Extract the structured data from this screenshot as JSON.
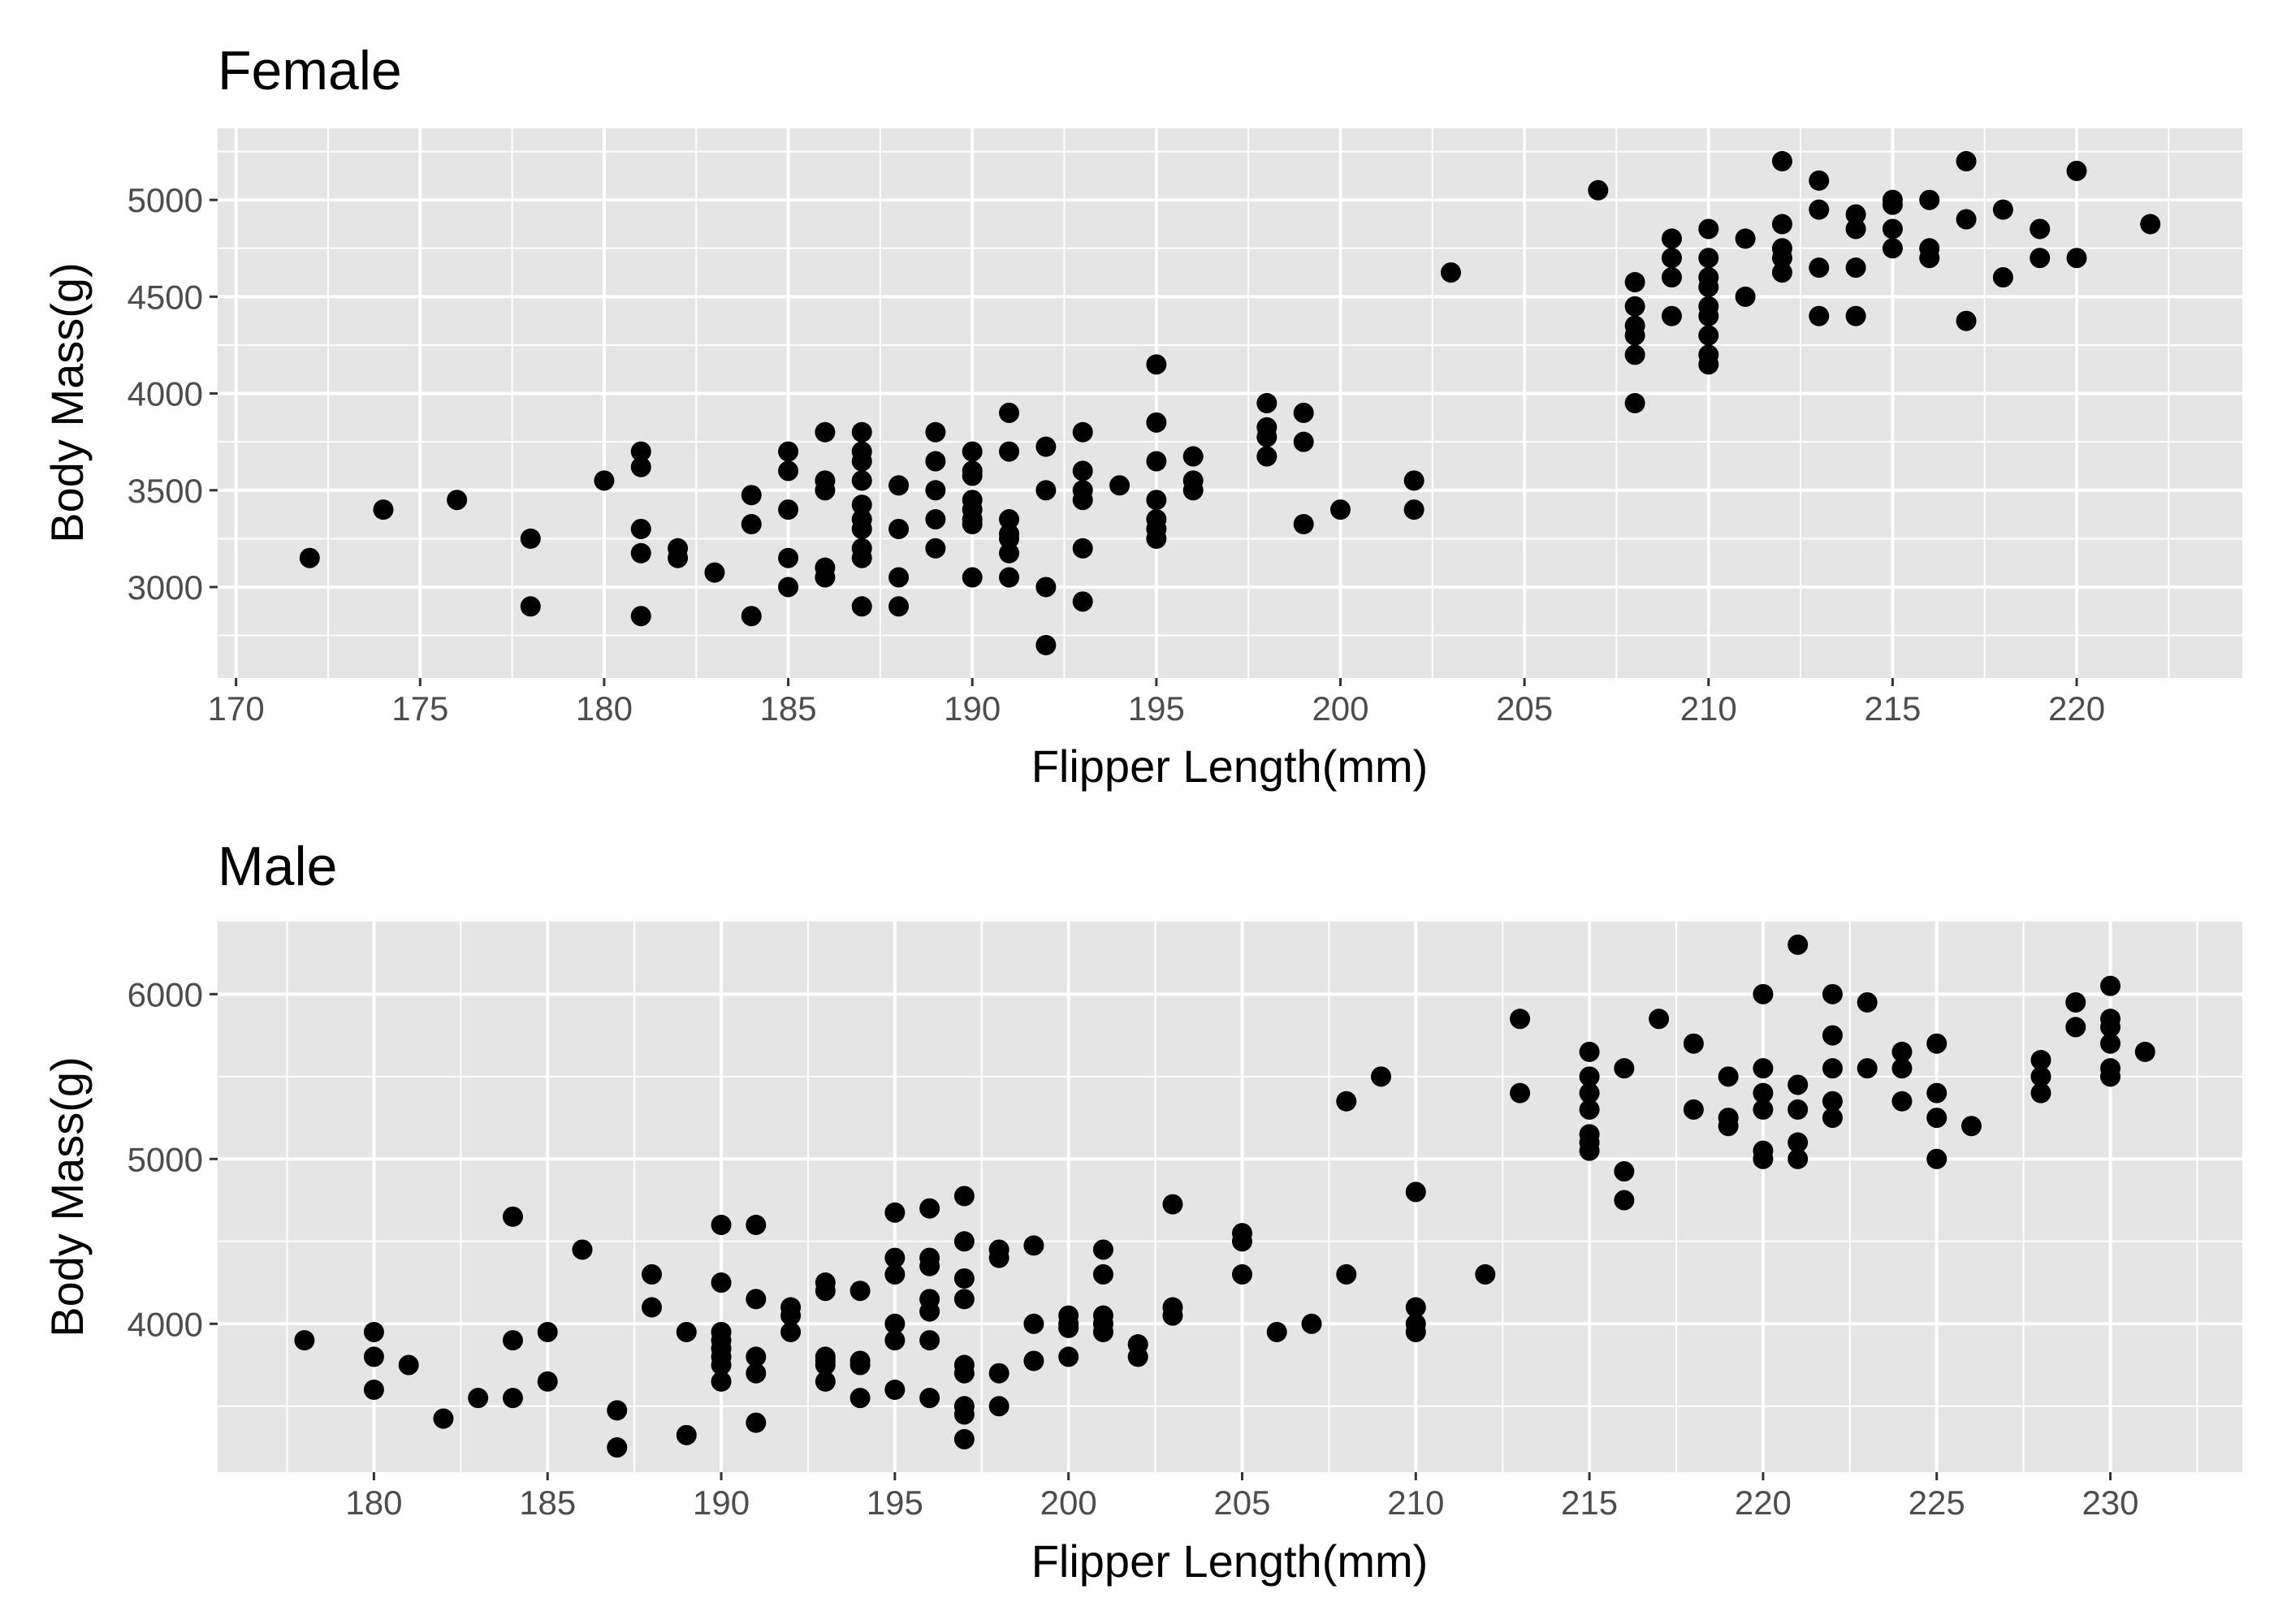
{
  "chart_data": [
    {
      "type": "scatter",
      "title": "Female",
      "xlabel": "Flipper Length(mm)",
      "ylabel": "Body Mass(g)",
      "xlim": [
        169.5,
        224.5
      ],
      "ylim": [
        2530,
        5370
      ],
      "xticks": [
        170,
        175,
        180,
        185,
        190,
        195,
        200,
        205,
        210,
        215,
        220
      ],
      "yticks": [
        3000,
        3500,
        4000,
        4500,
        5000
      ],
      "grid": true,
      "legend": "none",
      "points": [
        [
          172,
          3150
        ],
        [
          174,
          3400
        ],
        [
          176,
          3450
        ],
        [
          178,
          3250
        ],
        [
          178,
          2900
        ],
        [
          180,
          3550
        ],
        [
          181,
          3700
        ],
        [
          181,
          3620
        ],
        [
          181,
          3300
        ],
        [
          181,
          3175
        ],
        [
          181,
          2850
        ],
        [
          182,
          3200
        ],
        [
          182,
          3150
        ],
        [
          183,
          3075
        ],
        [
          184,
          3475
        ],
        [
          184,
          3325
        ],
        [
          184,
          2850
        ],
        [
          185,
          3700
        ],
        [
          185,
          3600
        ],
        [
          185,
          3400
        ],
        [
          185,
          3150
        ],
        [
          185,
          3000
        ],
        [
          186,
          3800
        ],
        [
          186,
          3550
        ],
        [
          186,
          3500
        ],
        [
          186,
          3100
        ],
        [
          186,
          3050
        ],
        [
          187,
          3800
        ],
        [
          187,
          3700
        ],
        [
          187,
          3650
        ],
        [
          187,
          3550
        ],
        [
          187,
          3425
        ],
        [
          187,
          3350
        ],
        [
          187,
          3300
        ],
        [
          187,
          3200
        ],
        [
          187,
          3150
        ],
        [
          187,
          2900
        ],
        [
          188,
          3525
        ],
        [
          188,
          3300
        ],
        [
          188,
          3050
        ],
        [
          188,
          2900
        ],
        [
          189,
          3800
        ],
        [
          189,
          3650
        ],
        [
          189,
          3500
        ],
        [
          189,
          3350
        ],
        [
          189,
          3200
        ],
        [
          190,
          3700
        ],
        [
          190,
          3600
        ],
        [
          190,
          3575
        ],
        [
          190,
          3450
        ],
        [
          190,
          3400
        ],
        [
          190,
          3350
        ],
        [
          190,
          3325
        ],
        [
          190,
          3050
        ],
        [
          191,
          3900
        ],
        [
          191,
          3700
        ],
        [
          191,
          3350
        ],
        [
          191,
          3275
        ],
        [
          191,
          3250
        ],
        [
          191,
          3175
        ],
        [
          191,
          3050
        ],
        [
          192,
          3725
        ],
        [
          192,
          3500
        ],
        [
          192,
          3000
        ],
        [
          192,
          2700
        ],
        [
          193,
          3800
        ],
        [
          193,
          3600
        ],
        [
          193,
          3500
        ],
        [
          193,
          3450
        ],
        [
          193,
          3200
        ],
        [
          193,
          2925
        ],
        [
          194,
          3525
        ],
        [
          195,
          4150
        ],
        [
          195,
          3850
        ],
        [
          195,
          3650
        ],
        [
          195,
          3450
        ],
        [
          195,
          3350
        ],
        [
          195,
          3300
        ],
        [
          195,
          3250
        ],
        [
          196,
          3675
        ],
        [
          196,
          3550
        ],
        [
          196,
          3500
        ],
        [
          198,
          3950
        ],
        [
          198,
          3825
        ],
        [
          198,
          3775
        ],
        [
          198,
          3675
        ],
        [
          199,
          3900
        ],
        [
          199,
          3750
        ],
        [
          199,
          3325
        ],
        [
          200,
          3400
        ],
        [
          202,
          3550
        ],
        [
          202,
          3400
        ],
        [
          203,
          4625
        ],
        [
          207,
          5050
        ],
        [
          208,
          4575
        ],
        [
          208,
          4450
        ],
        [
          208,
          4350
        ],
        [
          208,
          4300
        ],
        [
          208,
          4200
        ],
        [
          208,
          3950
        ],
        [
          209,
          4800
        ],
        [
          209,
          4700
        ],
        [
          209,
          4600
        ],
        [
          209,
          4400
        ],
        [
          210,
          4850
        ],
        [
          210,
          4700
        ],
        [
          210,
          4600
        ],
        [
          210,
          4550
        ],
        [
          210,
          4450
        ],
        [
          210,
          4400
        ],
        [
          210,
          4300
        ],
        [
          210,
          4200
        ],
        [
          210,
          4150
        ],
        [
          211,
          4800
        ],
        [
          211,
          4500
        ],
        [
          212,
          5200
        ],
        [
          212,
          4875
        ],
        [
          212,
          4750
        ],
        [
          212,
          4700
        ],
        [
          212,
          4625
        ],
        [
          213,
          5100
        ],
        [
          213,
          4950
        ],
        [
          213,
          4650
        ],
        [
          213,
          4400
        ],
        [
          214,
          4925
        ],
        [
          214,
          4850
        ],
        [
          214,
          4650
        ],
        [
          214,
          4400
        ],
        [
          215,
          5000
        ],
        [
          215,
          4975
        ],
        [
          215,
          4850
        ],
        [
          215,
          4750
        ],
        [
          216,
          5000
        ],
        [
          216,
          4750
        ],
        [
          216,
          4700
        ],
        [
          217,
          5200
        ],
        [
          217,
          4900
        ],
        [
          217,
          4375
        ],
        [
          218,
          4950
        ],
        [
          218,
          4600
        ],
        [
          219,
          4850
        ],
        [
          219,
          4700
        ],
        [
          220,
          5150
        ],
        [
          220,
          4700
        ],
        [
          222,
          4875
        ]
      ]
    },
    {
      "type": "scatter",
      "title": "Male",
      "xlabel": "Flipper Length(mm)",
      "ylabel": "Body Mass(g)",
      "xlim": [
        175.5,
        233.8
      ],
      "ylim": [
        3100,
        6440
      ],
      "xticks": [
        180,
        185,
        190,
        195,
        200,
        205,
        210,
        215,
        220,
        225,
        230
      ],
      "yticks": [
        4000,
        5000,
        6000
      ],
      "grid": true,
      "legend": "none",
      "points": [
        [
          178,
          3900
        ],
        [
          180,
          3950
        ],
        [
          180,
          3800
        ],
        [
          180,
          3600
        ],
        [
          181,
          3750
        ],
        [
          182,
          3425
        ],
        [
          183,
          3550
        ],
        [
          184,
          4650
        ],
        [
          184,
          3900
        ],
        [
          184,
          3550
        ],
        [
          185,
          3950
        ],
        [
          185,
          3650
        ],
        [
          186,
          4450
        ],
        [
          187,
          3475
        ],
        [
          187,
          3250
        ],
        [
          188,
          4300
        ],
        [
          188,
          4100
        ],
        [
          189,
          3950
        ],
        [
          189,
          3325
        ],
        [
          190,
          4600
        ],
        [
          190,
          4250
        ],
        [
          190,
          3950
        ],
        [
          190,
          3900
        ],
        [
          190,
          3850
        ],
        [
          190,
          3800
        ],
        [
          190,
          3750
        ],
        [
          190,
          3650
        ],
        [
          191,
          4600
        ],
        [
          191,
          4150
        ],
        [
          191,
          3800
        ],
        [
          191,
          3700
        ],
        [
          191,
          3400
        ],
        [
          192,
          4100
        ],
        [
          192,
          4050
        ],
        [
          192,
          3950
        ],
        [
          193,
          4250
        ],
        [
          193,
          4200
        ],
        [
          193,
          3800
        ],
        [
          193,
          3775
        ],
        [
          193,
          3750
        ],
        [
          193,
          3650
        ],
        [
          194,
          4200
        ],
        [
          194,
          3775
        ],
        [
          194,
          3750
        ],
        [
          194,
          3550
        ],
        [
          195,
          4675
        ],
        [
          195,
          4400
        ],
        [
          195,
          4300
        ],
        [
          195,
          4000
        ],
        [
          195,
          3900
        ],
        [
          195,
          3600
        ],
        [
          196,
          4700
        ],
        [
          196,
          4400
        ],
        [
          196,
          4350
        ],
        [
          196,
          4150
        ],
        [
          196,
          4075
        ],
        [
          196,
          3900
        ],
        [
          196,
          3550
        ],
        [
          197,
          4775
        ],
        [
          197,
          4500
        ],
        [
          197,
          4275
        ],
        [
          197,
          4150
        ],
        [
          197,
          3750
        ],
        [
          197,
          3700
        ],
        [
          197,
          3500
        ],
        [
          197,
          3450
        ],
        [
          197,
          3300
        ],
        [
          198,
          4450
        ],
        [
          198,
          4400
        ],
        [
          198,
          3700
        ],
        [
          198,
          3500
        ],
        [
          199,
          4475
        ],
        [
          199,
          4000
        ],
        [
          199,
          3775
        ],
        [
          200,
          4050
        ],
        [
          200,
          4000
        ],
        [
          200,
          3975
        ],
        [
          200,
          3800
        ],
        [
          201,
          4450
        ],
        [
          201,
          4300
        ],
        [
          201,
          4050
        ],
        [
          201,
          4000
        ],
        [
          201,
          3950
        ],
        [
          202,
          3875
        ],
        [
          202,
          3800
        ],
        [
          203,
          4725
        ],
        [
          203,
          4100
        ],
        [
          203,
          4050
        ],
        [
          205,
          4550
        ],
        [
          205,
          4500
        ],
        [
          205,
          4300
        ],
        [
          206,
          3950
        ],
        [
          207,
          4000
        ],
        [
          208,
          5350
        ],
        [
          208,
          4300
        ],
        [
          209,
          5500
        ],
        [
          210,
          4800
        ],
        [
          210,
          4100
        ],
        [
          210,
          4000
        ],
        [
          210,
          3950
        ],
        [
          212,
          4300
        ],
        [
          213,
          5850
        ],
        [
          213,
          5400
        ],
        [
          215,
          5650
        ],
        [
          215,
          5500
        ],
        [
          215,
          5400
        ],
        [
          215,
          5300
        ],
        [
          215,
          5150
        ],
        [
          215,
          5100
        ],
        [
          215,
          5050
        ],
        [
          216,
          5550
        ],
        [
          216,
          4925
        ],
        [
          216,
          4750
        ],
        [
          217,
          5850
        ],
        [
          218,
          5700
        ],
        [
          218,
          5300
        ],
        [
          219,
          5500
        ],
        [
          219,
          5250
        ],
        [
          219,
          5200
        ],
        [
          220,
          6000
        ],
        [
          220,
          5550
        ],
        [
          220,
          5400
        ],
        [
          220,
          5300
        ],
        [
          220,
          5050
        ],
        [
          220,
          5000
        ],
        [
          221,
          6300
        ],
        [
          221,
          5450
        ],
        [
          221,
          5300
        ],
        [
          221,
          5100
        ],
        [
          221,
          5000
        ],
        [
          222,
          6000
        ],
        [
          222,
          5750
        ],
        [
          222,
          5550
        ],
        [
          222,
          5350
        ],
        [
          222,
          5250
        ],
        [
          223,
          5950
        ],
        [
          223,
          5550
        ],
        [
          224,
          5650
        ],
        [
          224,
          5550
        ],
        [
          224,
          5350
        ],
        [
          225,
          5700
        ],
        [
          225,
          5400
        ],
        [
          225,
          5250
        ],
        [
          225,
          5000
        ],
        [
          226,
          5200
        ],
        [
          228,
          5600
        ],
        [
          228,
          5500
        ],
        [
          228,
          5400
        ],
        [
          229,
          5950
        ],
        [
          229,
          5800
        ],
        [
          230,
          6050
        ],
        [
          230,
          5850
        ],
        [
          230,
          5800
        ],
        [
          230,
          5700
        ],
        [
          230,
          5550
        ],
        [
          230,
          5500
        ],
        [
          231,
          5650
        ]
      ]
    }
  ]
}
